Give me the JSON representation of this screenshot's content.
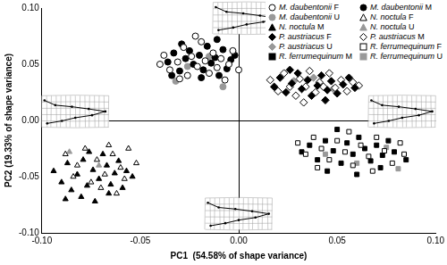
{
  "chart_data": {
    "type": "scatter",
    "x_label": "PC1  (54.58% of shape variance)",
    "y_label": "PC2 (19.33% of shape variance)",
    "xlim": [
      -0.1,
      0.1
    ],
    "ylim": [
      -0.1,
      0.1
    ],
    "xticks": [
      {
        "value": -0.1,
        "label": "-0.10"
      },
      {
        "value": -0.05,
        "label": "-0.05"
      },
      {
        "value": 0,
        "label": "0.00"
      },
      {
        "value": 0.05,
        "label": "0.05"
      },
      {
        "value": 0.1,
        "label": "0.10"
      }
    ],
    "yticks": [
      {
        "value": -0.1,
        "label": "-0.10"
      },
      {
        "value": -0.05,
        "label": "-0.05"
      },
      {
        "value": 0,
        "label": "0.00"
      },
      {
        "value": 0.05,
        "label": "0.05"
      },
      {
        "value": 0.1,
        "label": "0.10"
      }
    ],
    "legend": "upper right",
    "series": [
      {
        "name": "M. daubentonii F",
        "color": "#000000",
        "marker": "open-circle",
        "x": [
          -0.038,
          -0.035,
          -0.031,
          -0.028,
          -0.026,
          -0.024,
          -0.021,
          -0.019,
          -0.017,
          -0.015,
          -0.013,
          -0.011,
          -0.009,
          -0.007,
          -0.005,
          -0.003,
          -0.03,
          -0.022,
          0.0,
          -0.04
        ],
        "values": [
          0.058,
          0.045,
          0.052,
          0.065,
          0.04,
          0.057,
          0.048,
          0.07,
          0.053,
          0.042,
          0.06,
          0.047,
          0.055,
          0.036,
          0.05,
          0.062,
          0.037,
          0.075,
          0.045,
          0.05
        ]
      },
      {
        "name": "M. daubentonii M",
        "color": "#000000",
        "marker": "circle",
        "x": [
          -0.036,
          -0.033,
          -0.03,
          -0.027,
          -0.025,
          -0.023,
          -0.02,
          -0.018,
          -0.016,
          -0.014,
          -0.012,
          -0.01,
          -0.008,
          -0.006,
          -0.004,
          -0.002,
          -0.029,
          -0.019,
          -0.034,
          -0.011
        ],
        "values": [
          0.052,
          0.06,
          0.044,
          0.055,
          0.062,
          0.05,
          0.058,
          0.045,
          0.066,
          0.051,
          0.056,
          0.04,
          0.063,
          0.046,
          0.054,
          0.058,
          0.068,
          0.038,
          0.04,
          0.072
        ]
      },
      {
        "name": "M. daubentonii U",
        "color": "#999999",
        "marker": "circle",
        "x": [
          -0.032,
          -0.026,
          -0.015,
          -0.008
        ],
        "values": [
          0.035,
          0.048,
          0.057,
          0.03
        ]
      },
      {
        "name": "N. noctula F",
        "color": "#000000",
        "marker": "open-triangle",
        "x": [
          -0.088,
          -0.082,
          -0.078,
          -0.072,
          -0.068,
          -0.064,
          -0.06,
          -0.056,
          -0.052,
          -0.075,
          -0.066,
          -0.058,
          -0.07,
          -0.084,
          -0.062
        ],
        "values": [
          -0.03,
          -0.04,
          -0.025,
          -0.035,
          -0.048,
          -0.03,
          -0.042,
          -0.025,
          -0.038,
          -0.055,
          -0.022,
          -0.052,
          -0.06,
          -0.05,
          -0.065
        ]
      },
      {
        "name": "N. noctula M",
        "color": "#000000",
        "marker": "triangle",
        "x": [
          -0.094,
          -0.09,
          -0.087,
          -0.085,
          -0.082,
          -0.079,
          -0.077,
          -0.074,
          -0.071,
          -0.069,
          -0.067,
          -0.065,
          -0.063,
          -0.061,
          -0.059,
          -0.057,
          -0.08,
          -0.073,
          -0.054,
          -0.076,
          -0.088,
          -0.066
        ],
        "values": [
          -0.045,
          -0.055,
          -0.038,
          -0.062,
          -0.048,
          -0.035,
          -0.058,
          -0.044,
          -0.052,
          -0.03,
          -0.04,
          -0.057,
          -0.047,
          -0.036,
          -0.06,
          -0.045,
          -0.068,
          -0.072,
          -0.05,
          -0.028,
          -0.07,
          -0.065
        ]
      },
      {
        "name": "N. noctula U",
        "color": "#999999",
        "marker": "triangle",
        "x": [
          -0.086,
          -0.071
        ],
        "values": [
          -0.028,
          -0.04
        ]
      },
      {
        "name": "P. austriacus F",
        "color": "#000000",
        "marker": "diamond",
        "x": [
          0.018,
          0.021,
          0.024,
          0.027,
          0.03,
          0.032,
          0.035,
          0.037,
          0.04,
          0.042,
          0.045,
          0.047,
          0.05,
          0.053,
          0.056,
          0.059,
          0.026,
          0.044
        ],
        "values": [
          0.03,
          0.038,
          0.025,
          0.033,
          0.042,
          0.028,
          0.036,
          0.022,
          0.031,
          0.04,
          0.027,
          0.035,
          0.024,
          0.032,
          0.038,
          0.029,
          0.045,
          0.018
        ]
      },
      {
        "name": "P. austriacus M",
        "color": "#000000",
        "marker": "open-diamond",
        "x": [
          0.016,
          0.02,
          0.023,
          0.026,
          0.029,
          0.031,
          0.034,
          0.036,
          0.039,
          0.041,
          0.043,
          0.046,
          0.049,
          0.052,
          0.055,
          0.058,
          0.061,
          0.033
        ],
        "values": [
          0.036,
          0.026,
          0.042,
          0.03,
          0.022,
          0.037,
          0.03,
          0.044,
          0.025,
          0.034,
          0.03,
          0.042,
          0.029,
          0.036,
          0.026,
          0.034,
          0.031,
          0.016
        ]
      },
      {
        "name": "P. austriacus U",
        "color": "#999999",
        "marker": "diamond",
        "x": [
          0.028,
          0.048,
          0.038
        ],
        "values": [
          0.035,
          0.028,
          0.038
        ]
      },
      {
        "name": "R. ferrumequinum F",
        "color": "#000000",
        "marker": "open-square",
        "x": [
          0.03,
          0.034,
          0.038,
          0.042,
          0.046,
          0.05,
          0.054,
          0.058,
          0.062,
          0.066,
          0.07,
          0.074,
          0.078,
          0.082,
          0.04,
          0.056,
          0.068,
          0.084
        ],
        "values": [
          -0.02,
          -0.03,
          -0.015,
          -0.025,
          -0.035,
          -0.018,
          -0.028,
          -0.04,
          -0.022,
          -0.032,
          -0.015,
          -0.027,
          -0.038,
          -0.02,
          -0.042,
          -0.01,
          -0.045,
          -0.03
        ]
      },
      {
        "name": "R. ferrumequinum M",
        "color": "#000000",
        "marker": "square",
        "x": [
          0.032,
          0.036,
          0.04,
          0.044,
          0.048,
          0.052,
          0.055,
          0.058,
          0.061,
          0.064,
          0.067,
          0.07,
          0.073,
          0.076,
          0.079,
          0.045,
          0.06,
          0.072,
          0.05,
          0.085
        ],
        "values": [
          -0.028,
          -0.022,
          -0.035,
          -0.018,
          -0.027,
          -0.038,
          -0.02,
          -0.03,
          -0.015,
          -0.025,
          -0.036,
          -0.022,
          -0.031,
          -0.018,
          -0.028,
          -0.045,
          -0.048,
          -0.042,
          -0.008,
          -0.035
        ]
      },
      {
        "name": "R. ferrumequinum U",
        "color": "#999999",
        "marker": "square",
        "x": [
          0.044,
          0.06,
          0.075,
          0.081
        ],
        "values": [
          -0.03,
          -0.038,
          -0.024,
          -0.043
        ]
      }
    ]
  }
}
